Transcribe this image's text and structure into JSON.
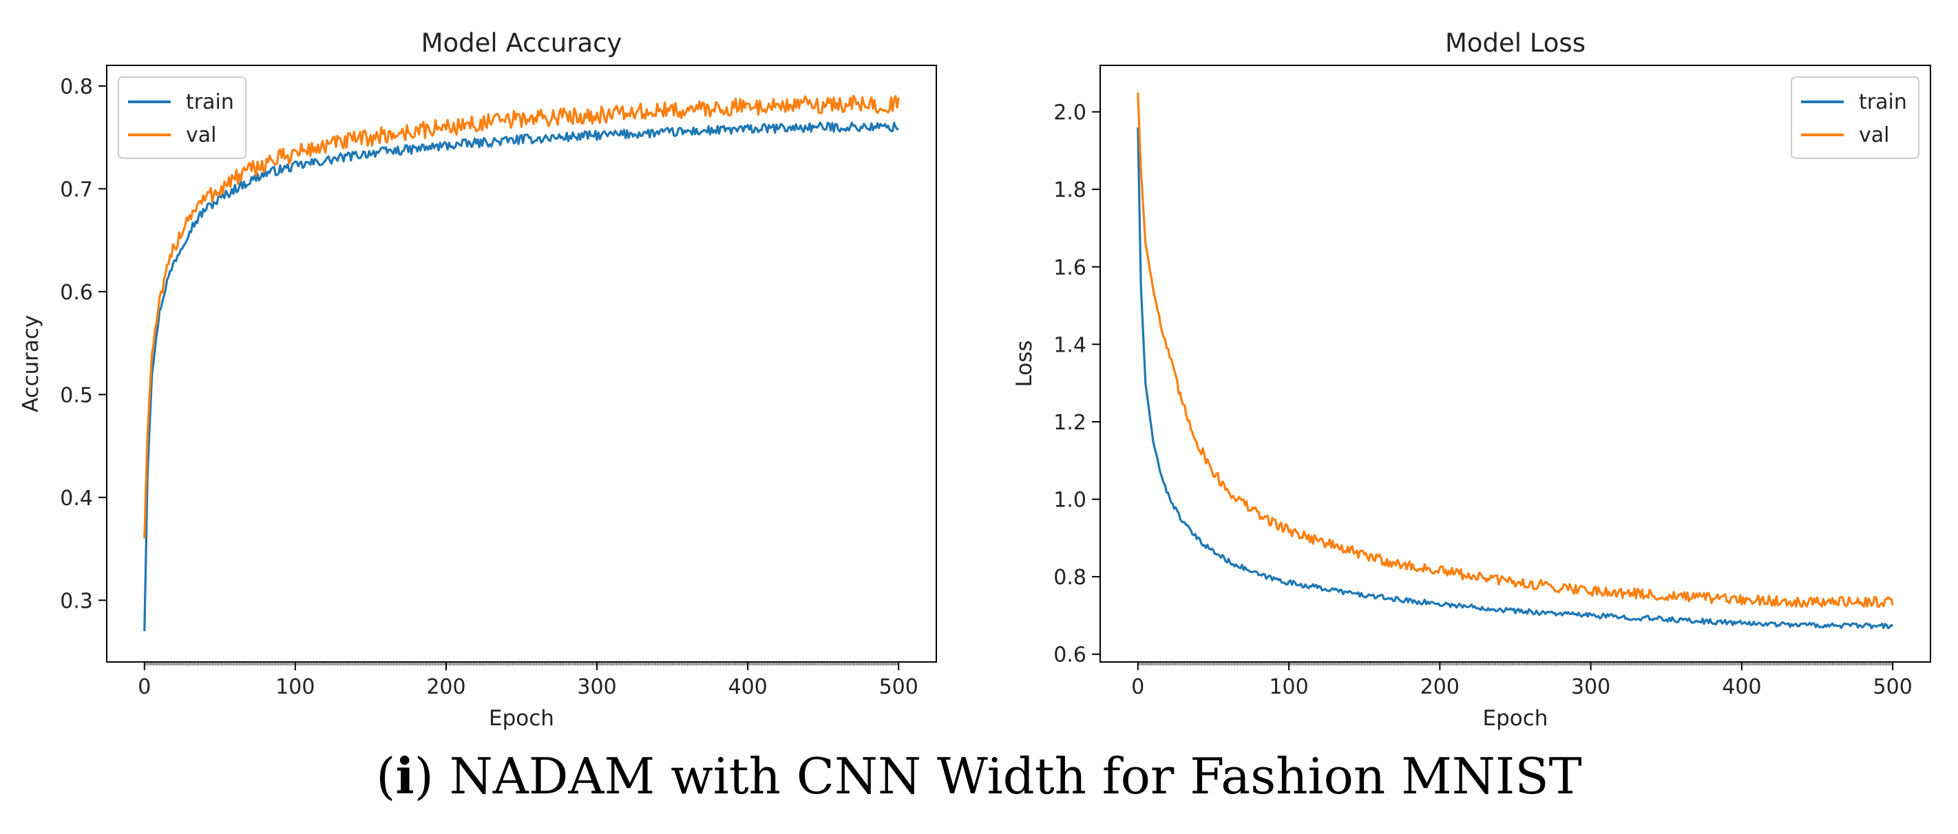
{
  "caption": {
    "open": "(",
    "letter": "i",
    "close": ")",
    "text": "NADAM with CNN Width for Fashion MNIST"
  },
  "colors": {
    "train": "#1f77b4",
    "val": "#ff7f0e",
    "axis": "#000000",
    "text": "#222222"
  },
  "chart_data": [
    {
      "type": "line",
      "title": "Model Accuracy",
      "xlabel": "Epoch",
      "ylabel": "Accuracy",
      "xlim": [
        -25,
        525
      ],
      "ylim": [
        0.24,
        0.82
      ],
      "xticks": [
        0,
        100,
        200,
        300,
        400,
        500
      ],
      "yticks": [
        0.3,
        0.4,
        0.5,
        0.6,
        0.7,
        0.8
      ],
      "ytick_labels": [
        "0.3",
        "0.4",
        "0.5",
        "0.6",
        "0.7",
        "0.8"
      ],
      "legend_position": "upper-left",
      "series": [
        {
          "name": "train",
          "x": [
            0,
            2,
            5,
            10,
            15,
            20,
            30,
            40,
            50,
            60,
            80,
            100,
            130,
            150,
            175,
            200,
            250,
            300,
            350,
            400,
            450,
            500
          ],
          "y": [
            0.27,
            0.42,
            0.52,
            0.58,
            0.61,
            0.63,
            0.66,
            0.68,
            0.69,
            0.7,
            0.715,
            0.722,
            0.73,
            0.735,
            0.738,
            0.742,
            0.748,
            0.752,
            0.755,
            0.758,
            0.76,
            0.76
          ]
        },
        {
          "name": "val",
          "x": [
            0,
            2,
            5,
            10,
            15,
            20,
            30,
            40,
            50,
            60,
            80,
            100,
            130,
            150,
            175,
            200,
            250,
            300,
            350,
            400,
            450,
            500
          ],
          "y": [
            0.36,
            0.46,
            0.54,
            0.59,
            0.62,
            0.645,
            0.675,
            0.69,
            0.7,
            0.71,
            0.725,
            0.735,
            0.745,
            0.75,
            0.755,
            0.76,
            0.768,
            0.772,
            0.776,
            0.78,
            0.782,
            0.782
          ]
        }
      ]
    },
    {
      "type": "line",
      "title": "Model Loss",
      "xlabel": "Epoch",
      "ylabel": "Loss",
      "xlim": [
        -25,
        525
      ],
      "ylim": [
        0.58,
        2.12
      ],
      "xticks": [
        0,
        100,
        200,
        300,
        400,
        500
      ],
      "yticks": [
        0.6,
        0.8,
        1.0,
        1.2,
        1.4,
        1.6,
        1.8,
        2.0
      ],
      "ytick_labels": [
        "0.6",
        "0.8",
        "1.0",
        "1.2",
        "1.4",
        "1.6",
        "1.8",
        "2.0"
      ],
      "legend_position": "upper-right",
      "series": [
        {
          "name": "train",
          "x": [
            0,
            2,
            5,
            10,
            15,
            20,
            30,
            40,
            50,
            60,
            80,
            100,
            130,
            150,
            175,
            200,
            250,
            300,
            350,
            400,
            450,
            500
          ],
          "y": [
            1.96,
            1.55,
            1.3,
            1.15,
            1.07,
            1.01,
            0.94,
            0.895,
            0.865,
            0.84,
            0.805,
            0.785,
            0.765,
            0.752,
            0.74,
            0.73,
            0.712,
            0.7,
            0.69,
            0.68,
            0.675,
            0.672
          ]
        },
        {
          "name": "val",
          "x": [
            0,
            2,
            5,
            10,
            15,
            20,
            30,
            40,
            50,
            60,
            80,
            100,
            130,
            150,
            175,
            200,
            250,
            300,
            350,
            400,
            450,
            500
          ],
          "y": [
            2.05,
            1.85,
            1.66,
            1.55,
            1.45,
            1.38,
            1.24,
            1.14,
            1.07,
            1.02,
            0.96,
            0.92,
            0.88,
            0.855,
            0.83,
            0.815,
            0.785,
            0.765,
            0.75,
            0.74,
            0.735,
            0.735
          ]
        }
      ]
    }
  ]
}
